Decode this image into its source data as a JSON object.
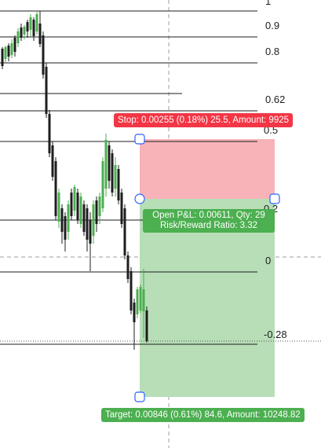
{
  "fib_levels": [
    {
      "label": "1",
      "price": 1.0
    },
    {
      "label": "0.9",
      "price": 0.9
    },
    {
      "label": "0.8",
      "price": 0.8
    },
    {
      "label": "0.62",
      "price": 0.62
    },
    {
      "label": "0.5",
      "price": 0.5
    },
    {
      "label": "0.2",
      "price": 0.2
    },
    {
      "label": "0",
      "price": 0.0
    },
    {
      "label": "-0.28",
      "price": -0.28
    }
  ],
  "position": {
    "stop_label": "Stop: 0.00255 (0.18%) 25.5, Amount: 9925",
    "pnl_line1": "Open P&L: 0.00611, Qty: 29",
    "pnl_line2": "Risk/Reward Ratio: 3.32",
    "target_label": "Target: 0.00846 (0.61%) 84.6, Amount: 10248.82"
  },
  "colors": {
    "bull": "#4caf50",
    "bear": "#1e1e1e",
    "stop_zone": "#f7b3b8",
    "target_zone": "#b7deb7",
    "stop_tag": "#f23645",
    "target_tag": "#4caf50",
    "handle": "#2962ff"
  }
}
